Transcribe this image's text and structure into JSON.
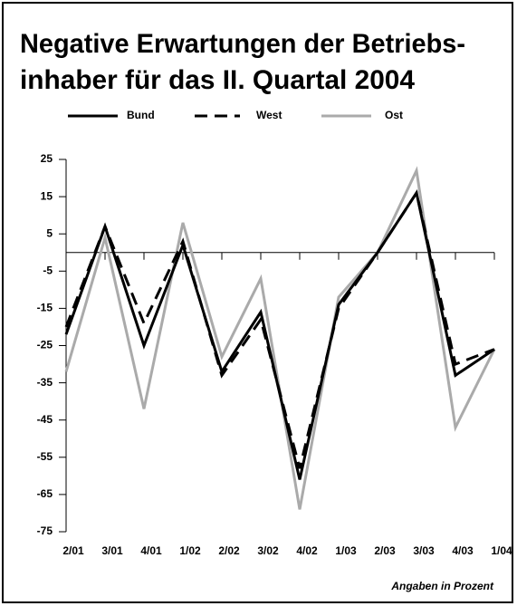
{
  "chart_data": {
    "type": "line",
    "title": [
      "Negative Erwartungen der Betriebs-",
      "inhaber für das II. Quartal 2004"
    ],
    "note": "Angaben in Prozent",
    "categories": [
      "2/01",
      "3/01",
      "4/01",
      "1/02",
      "2/02",
      "3/02",
      "4/02",
      "1/03",
      "2/03",
      "3/03",
      "4/03",
      "1/04"
    ],
    "series": [
      {
        "name": "Bund",
        "color": "#000000",
        "dash": false,
        "values": [
          -22,
          7,
          -25,
          2,
          -32,
          -16,
          -61,
          -14,
          0,
          16,
          -33,
          -26
        ]
      },
      {
        "name": "West",
        "color": "#000000",
        "dash": true,
        "values": [
          -20,
          7,
          -19,
          3,
          -33,
          -18,
          -58,
          -15,
          0,
          16,
          -30,
          -26
        ]
      },
      {
        "name": "Ost",
        "color": "#aaaaaa",
        "dash": false,
        "values": [
          -32,
          4,
          -42,
          8,
          -28,
          -7,
          -69,
          -12,
          0,
          22,
          -47,
          -26
        ]
      }
    ],
    "ylim": [
      -75,
      25
    ],
    "yticks": [
      25,
      15,
      5,
      -5,
      -15,
      -25,
      -35,
      -45,
      -55,
      -65,
      -75
    ]
  }
}
